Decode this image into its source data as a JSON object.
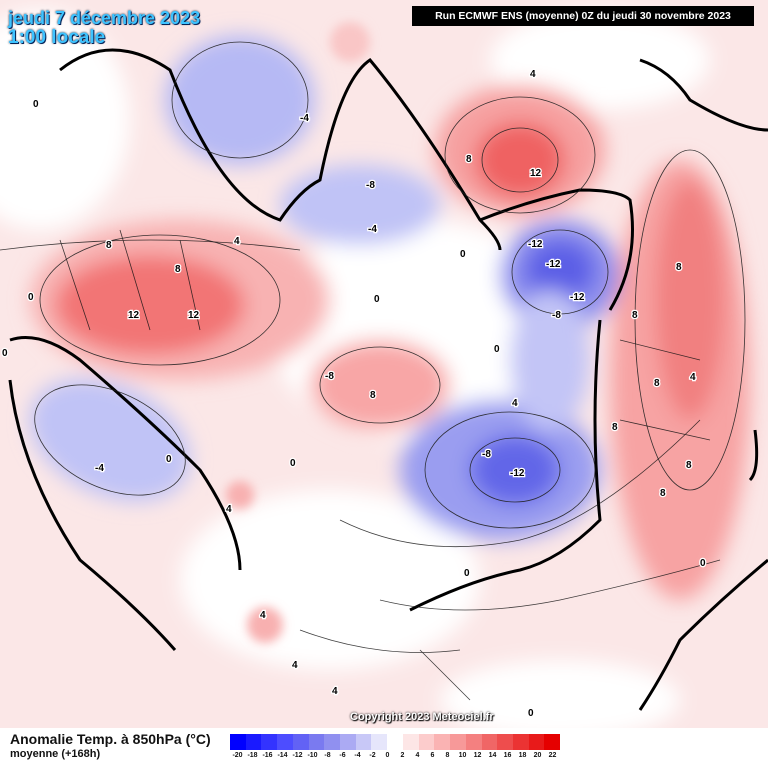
{
  "header": {
    "date_line": "jeudi 7 décembre 2023",
    "time_line": "1:00 locale",
    "run_info": "Run ECMWF ENS (moyenne) 0Z du jeudi 30 novembre 2023"
  },
  "copyright": "Copyright 2023 Meteociel.fr",
  "footer": {
    "title": "Anomalie Temp. à 850hPa (°C)",
    "subtitle": "moyenne    (+168h)"
  },
  "colors": {
    "cold_strong": "#2a2af0",
    "cold_mid": "#6a6ef0",
    "cold_light": "#b8bdf6",
    "neutral": "#ffffff",
    "warm_light": "#fcd6d6",
    "warm_mid": "#f78f8f",
    "warm_strong": "#ee4a4a",
    "coast": "#000000"
  },
  "colorbar": {
    "ticks": [
      "-20",
      "-18",
      "-16",
      "-14",
      "-12",
      "-10",
      "-8",
      "-6",
      "-4",
      "-2",
      "0",
      "2",
      "4",
      "6",
      "8",
      "10",
      "12",
      "14",
      "16",
      "18",
      "20",
      "22"
    ],
    "colors": [
      "#0000ff",
      "#1a1aff",
      "#3333ff",
      "#4d4dff",
      "#6262f5",
      "#7a7af0",
      "#9090f0",
      "#abaaf3",
      "#c8c8f7",
      "#e6e6fb",
      "#ffffff",
      "#fde6e6",
      "#fccccc",
      "#fab3b3",
      "#f79999",
      "#f48080",
      "#f06666",
      "#ee4d4d",
      "#eb3333",
      "#e81a1a",
      "#e50000"
    ]
  },
  "contour_labels": [
    "-12",
    "-12",
    "-12",
    "-12",
    "-8",
    "-8",
    "-8",
    "-8",
    "-4",
    "-4",
    "-4",
    "0",
    "0",
    "0",
    "0",
    "0",
    "0",
    "0",
    "0",
    "0",
    "0",
    "0",
    "4",
    "4",
    "4",
    "4",
    "4",
    "4",
    "4",
    "4",
    "8",
    "8",
    "8",
    "8",
    "8",
    "8",
    "8",
    "8",
    "8",
    "8",
    "12",
    "12",
    "12"
  ]
}
